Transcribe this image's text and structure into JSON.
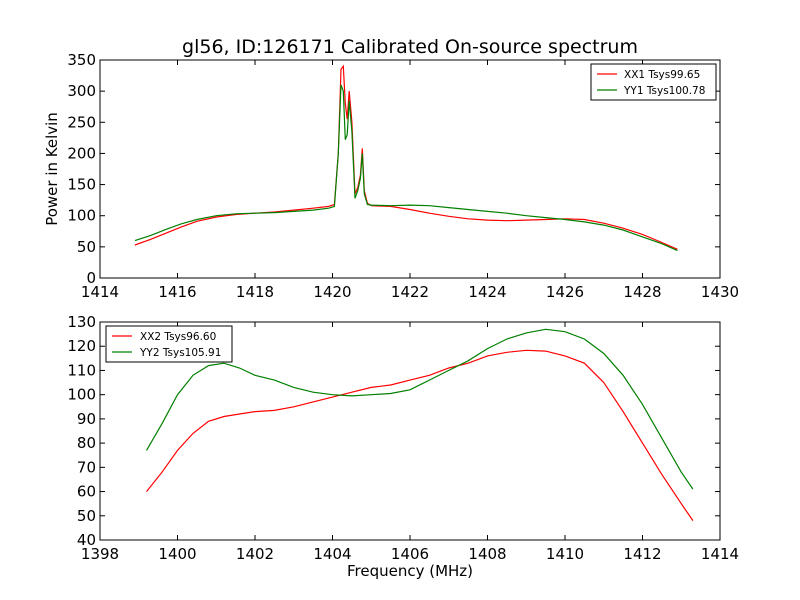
{
  "chart_data": [
    {
      "type": "line",
      "title": "gl56, ID:126171 Calibrated On-source spectrum",
      "xlabel": "",
      "ylabel": "Power in Kelvin",
      "xlim": [
        1414,
        1430
      ],
      "ylim": [
        0,
        350
      ],
      "xticks": [
        "1414",
        "1416",
        "1418",
        "1420",
        "1422",
        "1424",
        "1426",
        "1428",
        "1430"
      ],
      "yticks": [
        "0",
        "50",
        "100",
        "150",
        "200",
        "250",
        "300",
        "350"
      ],
      "legend_position": "top-right",
      "series": [
        {
          "name": "XX1 Tsys99.65",
          "color": "#ff0000",
          "x": [
            1414.9,
            1415.3,
            1415.7,
            1416.1,
            1416.5,
            1417.0,
            1417.5,
            1418.0,
            1418.5,
            1419.0,
            1419.5,
            1419.9,
            1420.05,
            1420.15,
            1420.22,
            1420.28,
            1420.33,
            1420.38,
            1420.43,
            1420.5,
            1420.58,
            1420.65,
            1420.72,
            1420.77,
            1420.82,
            1420.9,
            1421.0,
            1421.5,
            1422.0,
            1422.5,
            1423.0,
            1423.5,
            1424.0,
            1424.5,
            1425.0,
            1425.5,
            1426.0,
            1426.5,
            1427.0,
            1427.5,
            1428.0,
            1428.5,
            1428.9
          ],
          "y": [
            53,
            62,
            72,
            82,
            91,
            98,
            102,
            104,
            106,
            109,
            112,
            115,
            118,
            200,
            335,
            340,
            280,
            255,
            300,
            250,
            135,
            145,
            165,
            208,
            140,
            120,
            116,
            115,
            110,
            104,
            99,
            95,
            93,
            92,
            93,
            94,
            95,
            94,
            88,
            80,
            70,
            57,
            46
          ]
        },
        {
          "name": "YY1 Tsys100.78",
          "color": "#008000",
          "x": [
            1414.9,
            1415.3,
            1415.7,
            1416.1,
            1416.5,
            1417.0,
            1417.5,
            1418.0,
            1418.5,
            1419.0,
            1419.5,
            1419.9,
            1420.05,
            1420.15,
            1420.22,
            1420.28,
            1420.33,
            1420.38,
            1420.43,
            1420.5,
            1420.58,
            1420.65,
            1420.72,
            1420.77,
            1420.82,
            1420.9,
            1421.0,
            1421.5,
            1422.0,
            1422.5,
            1423.0,
            1423.5,
            1424.0,
            1424.5,
            1425.0,
            1425.5,
            1426.0,
            1426.5,
            1427.0,
            1427.5,
            1428.0,
            1428.5,
            1428.9
          ],
          "y": [
            60,
            68,
            78,
            87,
            94,
            100,
            103,
            104,
            105,
            107,
            109,
            112,
            115,
            200,
            310,
            300,
            222,
            230,
            285,
            235,
            128,
            140,
            160,
            200,
            135,
            118,
            117,
            116,
            117,
            116,
            113,
            110,
            107,
            104,
            100,
            97,
            94,
            90,
            85,
            77,
            66,
            55,
            44
          ]
        }
      ]
    },
    {
      "type": "line",
      "title": "",
      "xlabel": "Frequency (MHz)",
      "ylabel": "",
      "xlim": [
        1398,
        1414
      ],
      "ylim": [
        40,
        130
      ],
      "xticks": [
        "1398",
        "1400",
        "1402",
        "1404",
        "1406",
        "1408",
        "1410",
        "1412",
        "1414"
      ],
      "yticks": [
        "40",
        "50",
        "60",
        "70",
        "80",
        "90",
        "100",
        "110",
        "120",
        "130"
      ],
      "legend_position": "top-left",
      "series": [
        {
          "name": "XX2 Tsys96.60",
          "color": "#ff0000",
          "x": [
            1399.2,
            1399.6,
            1400.0,
            1400.4,
            1400.8,
            1401.2,
            1401.6,
            1402.0,
            1402.5,
            1403.0,
            1403.5,
            1404.0,
            1404.5,
            1405.0,
            1405.5,
            1406.0,
            1406.5,
            1407.0,
            1407.5,
            1408.0,
            1408.5,
            1409.0,
            1409.5,
            1410.0,
            1410.5,
            1411.0,
            1411.5,
            1412.0,
            1412.5,
            1413.0,
            1413.3
          ],
          "y": [
            60,
            68,
            77,
            84,
            89,
            91,
            92,
            93,
            93.5,
            95,
            97,
            99,
            101,
            103,
            104,
            106,
            108,
            111,
            113,
            116,
            117.5,
            118.3,
            118,
            116,
            113,
            105,
            93,
            80,
            67,
            55,
            48
          ]
        },
        {
          "name": "YY2 Tsys105.91",
          "color": "#008000",
          "x": [
            1399.2,
            1399.6,
            1400.0,
            1400.4,
            1400.8,
            1401.2,
            1401.6,
            1402.0,
            1402.5,
            1403.0,
            1403.5,
            1404.0,
            1404.5,
            1405.0,
            1405.5,
            1406.0,
            1406.5,
            1407.0,
            1407.5,
            1408.0,
            1408.5,
            1409.0,
            1409.5,
            1410.0,
            1410.5,
            1411.0,
            1411.5,
            1412.0,
            1412.5,
            1413.0,
            1413.3
          ],
          "y": [
            77,
            88,
            100,
            108,
            112,
            113,
            111,
            108,
            106,
            103,
            101,
            100,
            99.5,
            100,
            100.5,
            102,
            106,
            110,
            114,
            119,
            123,
            125.5,
            127,
            126,
            123,
            117,
            108,
            96,
            82,
            68,
            61
          ]
        }
      ]
    }
  ]
}
